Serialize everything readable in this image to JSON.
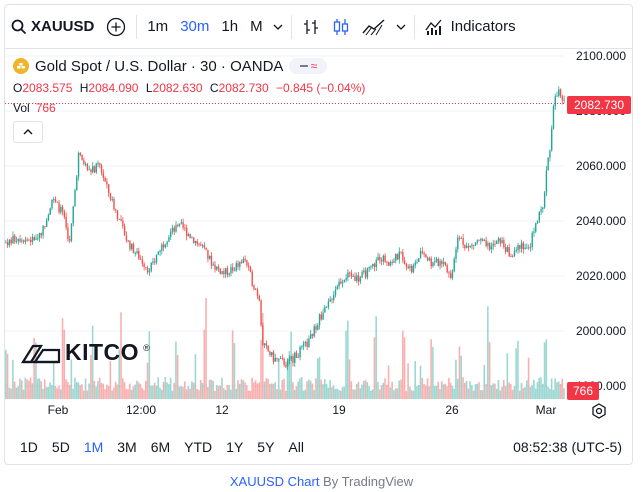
{
  "toolbar": {
    "symbol": "XAUUSD",
    "intervals": [
      "1m",
      "30m",
      "1h",
      "M"
    ],
    "active_interval": "30m",
    "indicators_label": "Indicators"
  },
  "legend": {
    "title": "Gold Spot / U.S. Dollar · 30 · OANDA",
    "open_key": "O",
    "open": "2083.575",
    "high_key": "H",
    "high": "2084.090",
    "low_key": "L",
    "low": "2082.630",
    "close_key": "C",
    "close": "2082.730",
    "change": "−0.845 (−0.04%)",
    "vol_label": "Vol",
    "vol_value": "766"
  },
  "logo": {
    "text": "KITCO",
    "reg": "®"
  },
  "price_axis": {
    "ticks": [
      "2100.000",
      "2080.000",
      "2060.000",
      "2040.000",
      "2020.000",
      "2000.000",
      "1980.000"
    ],
    "last_price_tag": "2082.730",
    "volume_tag": "766"
  },
  "time_axis": {
    "labels": [
      "Feb",
      "12:00",
      "12",
      "19",
      "26",
      "Mar"
    ]
  },
  "range_bar": {
    "ranges": [
      "1D",
      "5D",
      "1M",
      "3M",
      "6M",
      "YTD",
      "1Y",
      "5Y",
      "All"
    ],
    "active": "1M",
    "clock": "08:52:38 (UTC-5)"
  },
  "attribution": {
    "symbol": "XAUUSD Chart",
    "by": " By TradingView"
  },
  "colors": {
    "up": "#26a69a",
    "down": "#ef5350",
    "accent": "#2962ff",
    "price_tag": "#f23645"
  },
  "chart_data": {
    "type": "candlestick",
    "ylim": [
      1975,
      2102
    ],
    "price_anchors": [
      [
        0,
        2032
      ],
      [
        8,
        2034
      ],
      [
        16,
        2033
      ],
      [
        22,
        2037
      ],
      [
        27,
        2048
      ],
      [
        33,
        2043
      ],
      [
        37,
        2032
      ],
      [
        42,
        2064
      ],
      [
        48,
        2058
      ],
      [
        54,
        2060
      ],
      [
        58,
        2052
      ],
      [
        64,
        2042
      ],
      [
        70,
        2032
      ],
      [
        76,
        2027
      ],
      [
        82,
        2022
      ],
      [
        88,
        2030
      ],
      [
        94,
        2036
      ],
      [
        100,
        2038
      ],
      [
        106,
        2034
      ],
      [
        112,
        2030
      ],
      [
        118,
        2024
      ],
      [
        124,
        2021
      ],
      [
        130,
        2023
      ],
      [
        136,
        2026
      ],
      [
        140,
        2018
      ],
      [
        144,
        2012
      ],
      [
        146,
        1995
      ],
      [
        152,
        1990
      ],
      [
        160,
        1988
      ],
      [
        166,
        1992
      ],
      [
        172,
        1996
      ],
      [
        178,
        2005
      ],
      [
        182,
        2008
      ],
      [
        188,
        2017
      ],
      [
        194,
        2021
      ],
      [
        200,
        2019
      ],
      [
        206,
        2022
      ],
      [
        212,
        2027
      ],
      [
        218,
        2025
      ],
      [
        224,
        2028
      ],
      [
        230,
        2022
      ],
      [
        236,
        2029
      ],
      [
        242,
        2024
      ],
      [
        248,
        2026
      ],
      [
        252,
        2019
      ],
      [
        256,
        2035
      ],
      [
        262,
        2030
      ],
      [
        268,
        2033
      ],
      [
        274,
        2030
      ],
      [
        280,
        2033
      ],
      [
        286,
        2027
      ],
      [
        292,
        2032
      ],
      [
        296,
        2029
      ],
      [
        300,
        2040
      ],
      [
        304,
        2044
      ],
      [
        306,
        2058
      ],
      [
        308,
        2066
      ],
      [
        310,
        2083
      ],
      [
        313,
        2087
      ],
      [
        315,
        2082.73
      ]
    ],
    "volume_level": "low with periodic spikes"
  }
}
